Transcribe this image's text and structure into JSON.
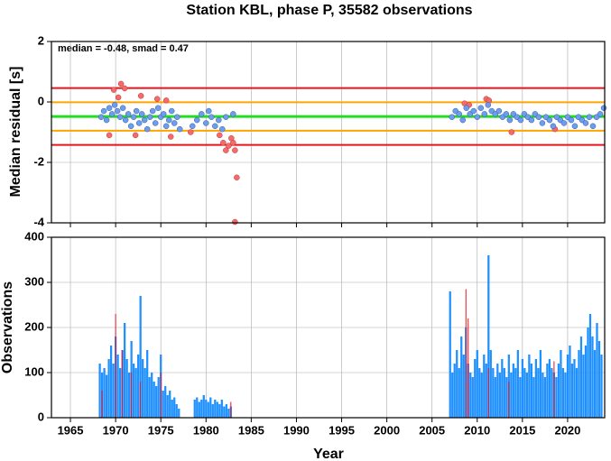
{
  "chart_data": [
    {
      "type": "scatter",
      "title": "Station KBL, phase P, 35582 observations",
      "y_label": "Median residual [s]",
      "annotation": "median = -0.48, smad = 0.47",
      "xlim": [
        1962.9,
        2024.1
      ],
      "ylim": [
        -4,
        2
      ],
      "xticks": [
        1965,
        1970,
        1975,
        1980,
        1985,
        1990,
        1995,
        2000,
        2005,
        2010,
        2015,
        2020
      ],
      "yticks": [
        -4,
        -2,
        0,
        2
      ],
      "grid": true,
      "reference_lines": [
        {
          "value": 0.46,
          "color": "#e8141e"
        },
        {
          "value": -1.42,
          "color": "#e8141e"
        },
        {
          "value": -0.01,
          "color": "#ffa500"
        },
        {
          "value": -0.95,
          "color": "#ffa500"
        },
        {
          "value": -0.48,
          "color": "#22dd22"
        }
      ],
      "series": [
        {
          "color": "#f56a6a",
          "x": [
            1969.3,
            1969.8,
            1970.3,
            1970.6,
            1971.0,
            1972.2,
            1972.8,
            1974.6,
            1975.6,
            1976.1,
            1978.3,
            1981.5,
            1981.9,
            1982.2,
            1982.5,
            1982.8,
            1983.0,
            1983.2,
            1983.4,
            1983.2,
            2008.6,
            2009.1,
            2011.0,
            2011.3,
            2013.8,
            2018.6
          ],
          "values": [
            -1.1,
            0.4,
            0.15,
            0.6,
            0.45,
            -1.1,
            0.2,
            0.1,
            0.05,
            -1.15,
            -1.0,
            -1.1,
            -1.35,
            -1.6,
            -1.45,
            -1.2,
            -1.35,
            -1.6,
            -2.5,
            -4.0,
            -0.05,
            -0.1,
            0.1,
            0.05,
            -1.0,
            -0.9
          ]
        },
        {
          "color": "#6d9eeb",
          "x": [
            1968.4,
            1968.7,
            1969.0,
            1969.3,
            1969.6,
            1969.9,
            1970.2,
            1970.5,
            1970.8,
            1971.1,
            1971.4,
            1971.7,
            1972.0,
            1972.3,
            1972.6,
            1972.9,
            1973.2,
            1973.5,
            1973.8,
            1974.1,
            1974.4,
            1974.7,
            1975.0,
            1975.3,
            1975.6,
            1975.9,
            1976.2,
            1976.5,
            1976.8,
            1977.1,
            1978.5,
            1979.0,
            1979.5,
            1980.0,
            1980.3,
            1980.6,
            1981.0,
            1981.4,
            1981.8,
            1982.2,
            1983.0,
            2007.2,
            2007.6,
            2008.0,
            2008.4,
            2008.8,
            2009.2,
            2009.6,
            2010.0,
            2010.4,
            2010.8,
            2011.2,
            2011.6,
            2012.0,
            2012.4,
            2012.8,
            2013.2,
            2013.6,
            2014.0,
            2014.4,
            2014.8,
            2015.2,
            2015.6,
            2016.0,
            2016.4,
            2016.8,
            2017.2,
            2017.6,
            2018.0,
            2018.4,
            2018.8,
            2019.2,
            2019.6,
            2020.0,
            2020.4,
            2020.8,
            2021.2,
            2021.6,
            2022.0,
            2022.4,
            2022.8,
            2023.2,
            2023.6,
            2024.0
          ],
          "values": [
            -0.5,
            -0.3,
            -0.6,
            -0.2,
            -0.4,
            -0.1,
            -0.3,
            -0.5,
            -0.2,
            -0.6,
            -0.4,
            -0.8,
            -0.5,
            -0.3,
            -0.7,
            -0.4,
            -0.6,
            -0.9,
            -0.5,
            -0.3,
            -0.7,
            -0.2,
            -0.5,
            -0.4,
            -0.8,
            -0.6,
            -0.3,
            -0.7,
            -0.5,
            -0.9,
            -0.8,
            -0.6,
            -0.4,
            -0.7,
            -0.3,
            -0.5,
            -0.8,
            -0.6,
            -0.9,
            -0.5,
            -0.4,
            -0.5,
            -0.3,
            -0.4,
            -0.6,
            -0.2,
            -0.4,
            -0.3,
            -0.5,
            -0.2,
            -0.4,
            -0.1,
            -0.3,
            -0.4,
            -0.3,
            -0.5,
            -0.4,
            -0.6,
            -0.4,
            -0.5,
            -0.6,
            -0.4,
            -0.5,
            -0.6,
            -0.4,
            -0.5,
            -0.7,
            -0.5,
            -0.6,
            -0.8,
            -0.5,
            -0.6,
            -0.7,
            -0.5,
            -0.6,
            -0.8,
            -0.5,
            -0.6,
            -0.7,
            -0.5,
            -0.8,
            -0.5,
            -0.4,
            -0.2
          ]
        }
      ]
    },
    {
      "type": "bar",
      "y_label": "Observations",
      "x_label": "Year",
      "xlim": [
        1962.9,
        2024.1
      ],
      "ylim": [
        0,
        400
      ],
      "xticks": [
        1965,
        1970,
        1975,
        1980,
        1985,
        1990,
        1995,
        2000,
        2005,
        2010,
        2015,
        2020
      ],
      "yticks": [
        0,
        100,
        200,
        300,
        400
      ],
      "grid": true,
      "bin_width": 0.25,
      "series": [
        {
          "color": "#1e90ff",
          "x": [
            1968.25,
            1968.5,
            1968.75,
            1969.0,
            1969.25,
            1969.5,
            1969.75,
            1970.0,
            1970.25,
            1970.5,
            1970.75,
            1971.0,
            1971.25,
            1971.5,
            1971.75,
            1972.0,
            1972.25,
            1972.5,
            1972.75,
            1973.0,
            1973.25,
            1973.5,
            1973.75,
            1974.0,
            1974.25,
            1974.5,
            1974.75,
            1975.0,
            1975.25,
            1975.5,
            1975.75,
            1976.0,
            1976.25,
            1976.5,
            1976.75,
            1977.0,
            1978.75,
            1979.0,
            1979.25,
            1979.5,
            1979.75,
            1980.0,
            1980.25,
            1980.5,
            1980.75,
            1981.0,
            1981.25,
            1981.5,
            1981.75,
            1982.0,
            1982.25,
            1982.5,
            1982.75,
            2007.0,
            2007.25,
            2007.5,
            2007.75,
            2008.0,
            2008.25,
            2008.5,
            2008.75,
            2009.0,
            2009.25,
            2009.5,
            2009.75,
            2010.0,
            2010.25,
            2010.5,
            2010.75,
            2011.0,
            2011.25,
            2011.5,
            2011.75,
            2012.0,
            2012.25,
            2012.5,
            2012.75,
            2013.0,
            2013.25,
            2013.5,
            2013.75,
            2014.0,
            2014.25,
            2014.5,
            2014.75,
            2015.0,
            2015.25,
            2015.5,
            2015.75,
            2016.0,
            2016.25,
            2016.5,
            2016.75,
            2017.0,
            2017.25,
            2017.5,
            2017.75,
            2018.0,
            2018.25,
            2018.5,
            2018.75,
            2019.0,
            2019.25,
            2019.5,
            2019.75,
            2020.0,
            2020.25,
            2020.5,
            2020.75,
            2021.0,
            2021.25,
            2021.5,
            2021.75,
            2022.0,
            2022.25,
            2022.5,
            2022.75,
            2023.0,
            2023.25,
            2023.5,
            2023.75
          ],
          "values": [
            120,
            100,
            110,
            95,
            130,
            160,
            120,
            180,
            140,
            110,
            150,
            210,
            130,
            100,
            170,
            120,
            110,
            140,
            270,
            130,
            110,
            150,
            90,
            100,
            80,
            70,
            90,
            140,
            60,
            70,
            50,
            60,
            40,
            45,
            30,
            20,
            40,
            45,
            35,
            40,
            50,
            40,
            35,
            45,
            30,
            40,
            35,
            30,
            40,
            25,
            30,
            20,
            25,
            280,
            100,
            120,
            150,
            110,
            180,
            140,
            200,
            120,
            100,
            90,
            130,
            150,
            110,
            100,
            140,
            120,
            360,
            150,
            110,
            90,
            120,
            100,
            130,
            110,
            90,
            140,
            100,
            120,
            110,
            150,
            90,
            130,
            110,
            100,
            140,
            120,
            90,
            130,
            110,
            150,
            100,
            90,
            120,
            130,
            110,
            100,
            90,
            120,
            150,
            110,
            100,
            140,
            160,
            120,
            130,
            110,
            150,
            180,
            140,
            160,
            200,
            230,
            180,
            150,
            210,
            170,
            140
          ]
        },
        {
          "color": "#e8141e",
          "x": [
            1968.5,
            1970.0,
            1970.75,
            1971.75,
            1972.75,
            1975.0,
            1982.75,
            2008.75,
            2009.0,
            2011.25,
            2013.5,
            2018.5
          ],
          "values": [
            60,
            230,
            150,
            100,
            80,
            100,
            35,
            285,
            220,
            110,
            80,
            125
          ]
        }
      ]
    }
  ]
}
